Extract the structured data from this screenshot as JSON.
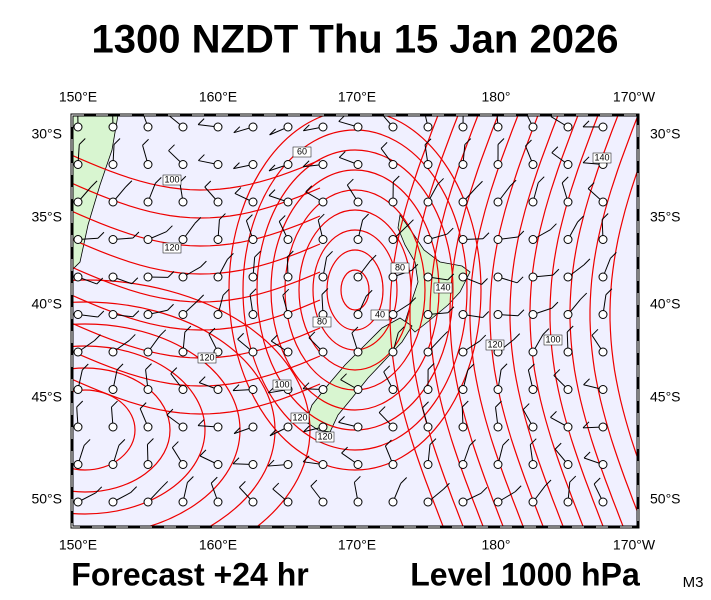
{
  "title": "1300 NZDT Thu 15 Jan 2026",
  "map": {
    "lon_labels_top": [
      "150°E",
      "160°E",
      "170°E",
      "180°",
      "170°W"
    ],
    "lon_labels_bottom": [
      "150°E",
      "160°E",
      "170°E",
      "180°",
      "170°W"
    ],
    "lat_labels_left": [
      "30°S",
      "35°S",
      "40°S",
      "45°S",
      "50°S"
    ],
    "lat_labels_right": [
      "30°S",
      "35°S",
      "40°S",
      "45°S",
      "50°S"
    ],
    "contour_labels": [
      "60",
      "100",
      "120",
      "140",
      "80",
      "40",
      "100",
      "120",
      "80",
      "120",
      "140",
      "120",
      "100",
      "120"
    ]
  },
  "footer": {
    "forecast": "Forecast +24 hr",
    "level": "Level 1000 hPa",
    "code": "M3"
  }
}
